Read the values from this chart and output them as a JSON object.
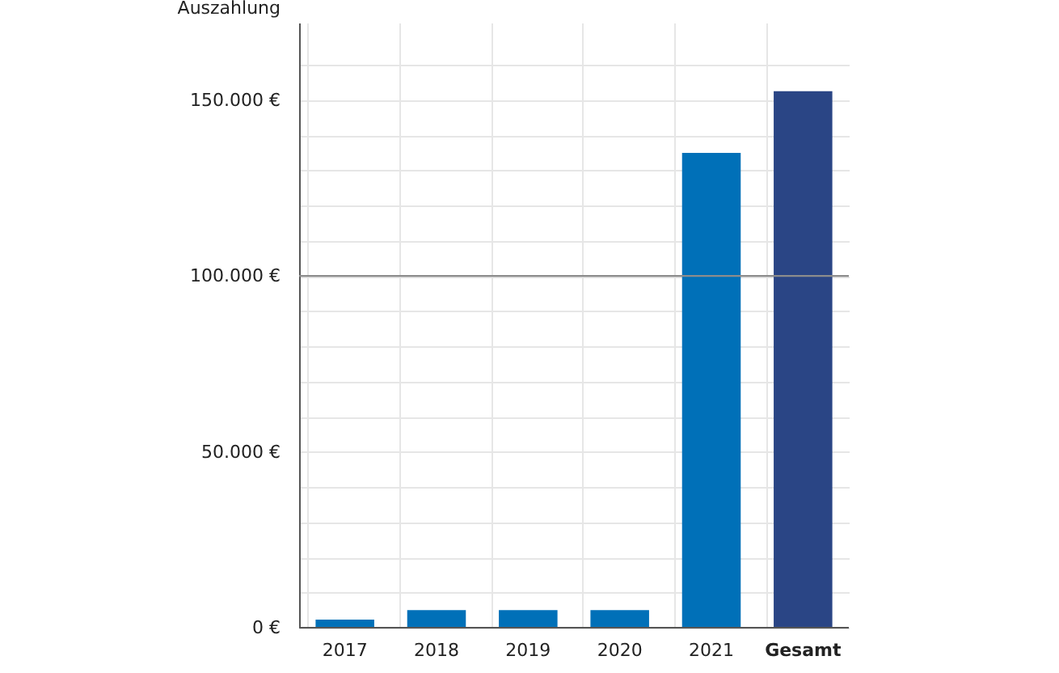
{
  "chart_data": {
    "type": "bar",
    "ylabel": "Auszahlung",
    "categories": [
      "2017",
      "2018",
      "2019",
      "2020",
      "2021",
      "Gesamt"
    ],
    "values": [
      2300,
      5000,
      5000,
      5000,
      135000,
      152500
    ],
    "colors": [
      "#0070b8",
      "#0070b8",
      "#0070b8",
      "#0070b8",
      "#0070b8",
      "#2a4585"
    ],
    "ylim": [
      0,
      172000
    ],
    "yticks": [
      {
        "value": 0,
        "label": "0 €"
      },
      {
        "value": 10000,
        "label": null
      },
      {
        "value": 20000,
        "label": null
      },
      {
        "value": 30000,
        "label": null
      },
      {
        "value": 40000,
        "label": null
      },
      {
        "value": 50000,
        "label": "50.000 €"
      },
      {
        "value": 60000,
        "label": null
      },
      {
        "value": 70000,
        "label": null
      },
      {
        "value": 80000,
        "label": null
      },
      {
        "value": 90000,
        "label": null
      },
      {
        "value": 100000,
        "label": "100.000 €"
      },
      {
        "value": 110000,
        "label": null
      },
      {
        "value": 120000,
        "label": null
      },
      {
        "value": 130000,
        "label": null
      },
      {
        "value": 140000,
        "label": null
      },
      {
        "value": 150000,
        "label": "150.000 €"
      },
      {
        "value": 160000,
        "label": null
      }
    ],
    "ref_lines": [
      {
        "axis": "y",
        "value": 100000,
        "color": "#8c8c8c"
      }
    ],
    "grid": true
  }
}
